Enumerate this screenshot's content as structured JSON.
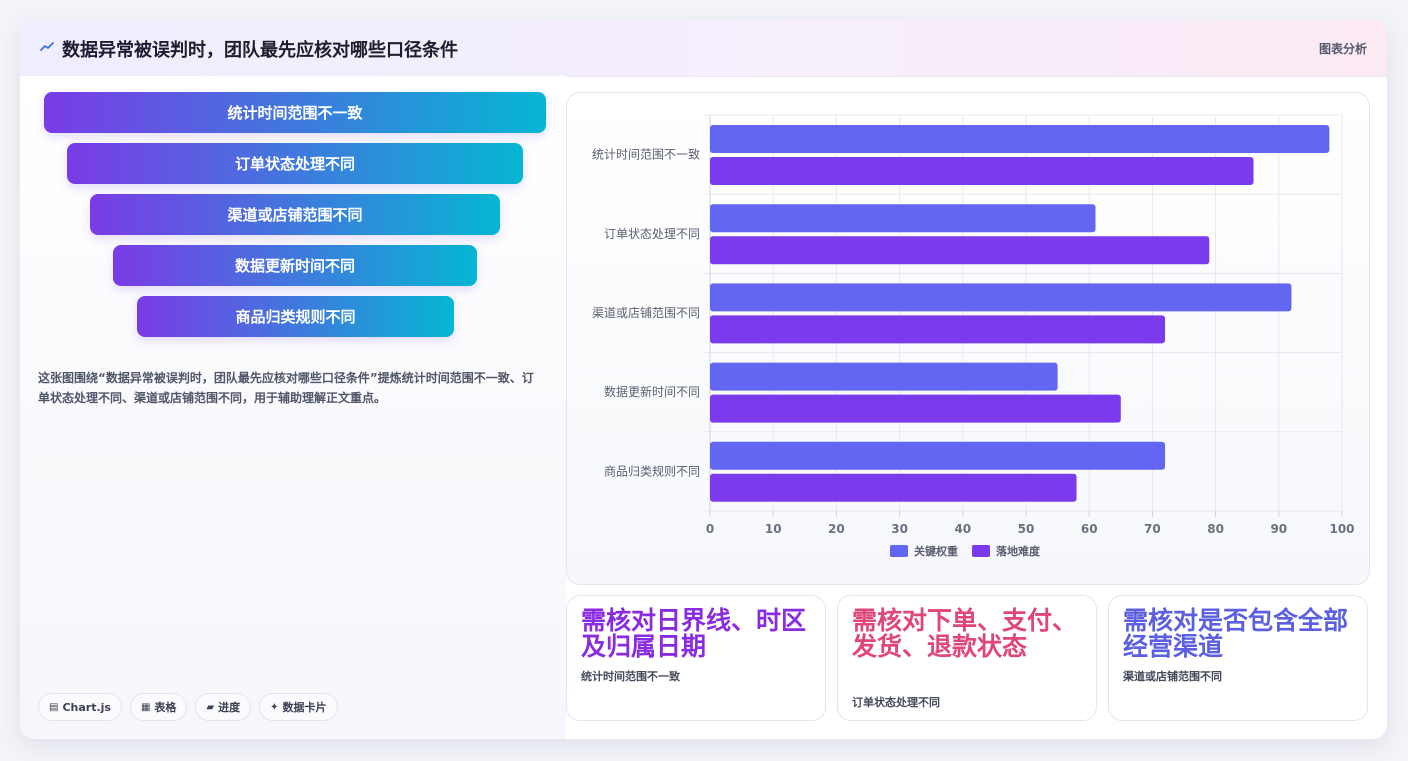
{
  "header": {
    "title": "数据异常被误判时，团队最先应核对哪些口径条件",
    "tag": "图表分析"
  },
  "funnel": [
    "统计时间范围不一致",
    "订单状态处理不同",
    "渠道或店铺范围不同",
    "数据更新时间不同",
    "商品归类规则不同"
  ],
  "description": "这张图围绕“数据异常被误判时，团队最先应核对哪些口径条件”提炼统计时间范围不一致、订单状态处理不同、渠道或店铺范围不同，用于辅助理解正文重点。",
  "tags": [
    {
      "icon": "chart-icon",
      "glyph": "▤",
      "label": "Chart.js"
    },
    {
      "icon": "table-icon",
      "glyph": "▦",
      "label": "表格"
    },
    {
      "icon": "progress-icon",
      "glyph": "▰",
      "label": "进度"
    },
    {
      "icon": "sparkle-icon",
      "glyph": "✦",
      "label": "数据卡片"
    }
  ],
  "chart_data": {
    "type": "bar",
    "orientation": "horizontal",
    "categories": [
      "统计时间范围不一致",
      "订单状态处理不同",
      "渠道或店铺范围不同",
      "数据更新时间不同",
      "商品归类规则不同"
    ],
    "series": [
      {
        "name": "关键权重",
        "color": "#6366f1",
        "values": [
          98,
          61,
          92,
          55,
          72
        ]
      },
      {
        "name": "落地难度",
        "color": "#7c3aed",
        "values": [
          86,
          79,
          72,
          65,
          58
        ]
      }
    ],
    "xlim": [
      0,
      100
    ],
    "xticks": [
      0,
      10,
      20,
      30,
      40,
      50,
      60,
      70,
      80,
      90,
      100
    ],
    "grid": true,
    "legend": "bottom"
  },
  "stats": [
    {
      "value": "需核对日界线、时区及归属日期",
      "label": "统计时间范围不一致",
      "color": "#8a2be2"
    },
    {
      "value": "需核对下单、支付、发货、退款状态",
      "label": "订单状态处理不同",
      "color": "#e0457b"
    },
    {
      "value": "需核对是否包含全部经营渠道",
      "label": "渠道或店铺范围不同",
      "color": "#5b5fe0"
    }
  ]
}
